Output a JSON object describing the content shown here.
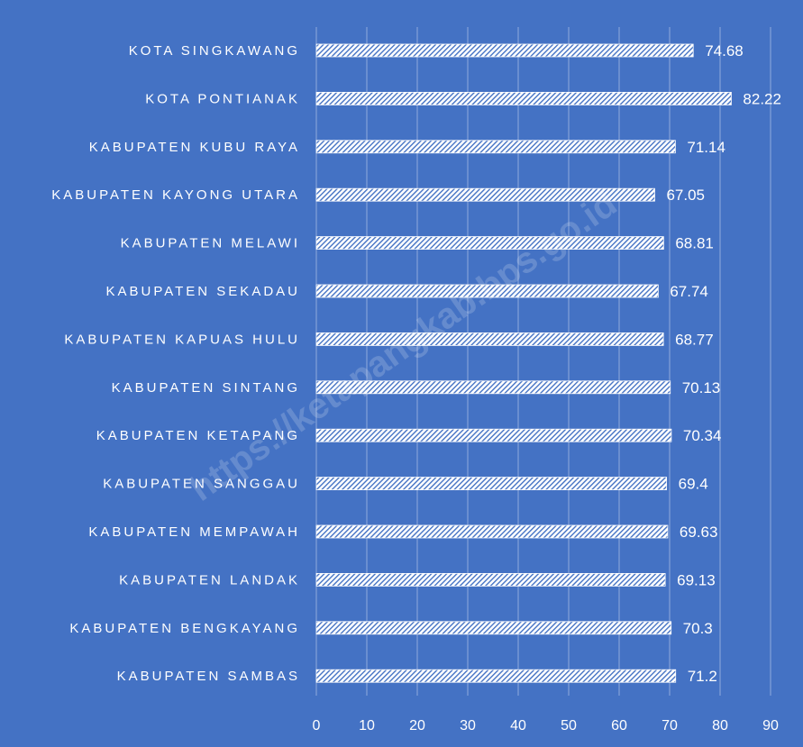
{
  "chart_data": {
    "type": "bar",
    "orientation": "horizontal",
    "title": "",
    "xlabel": "",
    "ylabel": "",
    "xlim": [
      0,
      90
    ],
    "x_ticks": [
      "0",
      "10",
      "20",
      "30",
      "40",
      "50",
      "60",
      "70",
      "80",
      "90"
    ],
    "grid": true,
    "legend": "none",
    "categories": [
      "KOTA SINGKAWANG",
      "KOTA PONTIANAK",
      "KABUPATEN KUBU RAYA",
      "KABUPATEN KAYONG UTARA",
      "KABUPATEN MELAWI",
      "KABUPATEN SEKADAU",
      "KABUPATEN KAPUAS HULU",
      "KABUPATEN SINTANG",
      "KABUPATEN KETAPANG",
      "KABUPATEN SANGGAU",
      "KABUPATEN MEMPAWAH",
      "KABUPATEN LANDAK",
      "KABUPATEN BENGKAYANG",
      "KABUPATEN SAMBAS"
    ],
    "values": [
      74.68,
      82.22,
      71.14,
      67.05,
      68.81,
      67.74,
      68.77,
      70.13,
      70.34,
      69.4,
      69.63,
      69.13,
      70.3,
      71.2
    ],
    "value_labels": [
      "74.68",
      "82.22",
      "71.14",
      "67.05",
      "68.81",
      "67.74",
      "68.77",
      "70.13",
      "70.34",
      "69.4",
      "69.63",
      "69.13",
      "70.3",
      "71.2"
    ],
    "colors": {
      "background": "#4472C4",
      "bar_fill": "#FFFFFF",
      "bar_hatch": "#4472C4",
      "gridline": "#8FAADC",
      "text": "#FFFFFF"
    },
    "bar_pattern": "diagonal-hatch",
    "watermark": "https://ketapangkab.bps.go.id"
  }
}
